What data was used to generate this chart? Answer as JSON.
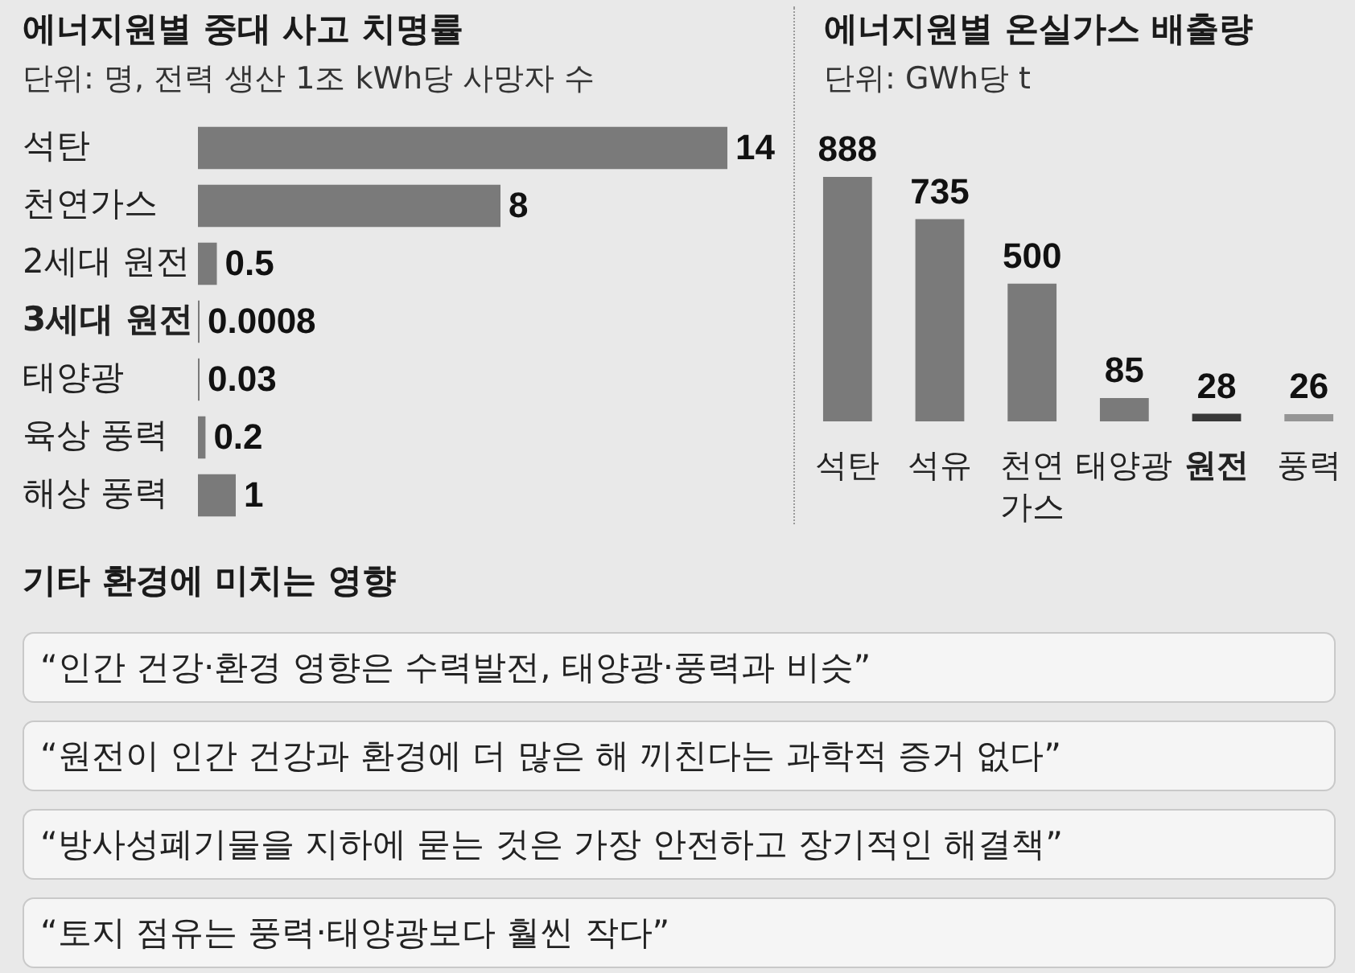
{
  "chart_data": [
    {
      "type": "bar",
      "title": "에너지원별 중대 사고 치명률",
      "subtitle": "단위: 명, 전력 생산 1조 kWh당 사망자 수",
      "orientation": "horizontal",
      "categories": [
        "석탄",
        "천연가스",
        "2세대 원전",
        "3세대 원전",
        "태양광",
        "육상 풍력",
        "해상 풍력"
      ],
      "values": [
        14,
        8,
        0.5,
        0.0008,
        0.03,
        0.2,
        1
      ],
      "color": "#7a7a7a",
      "data_labels": true
    },
    {
      "type": "bar",
      "title": "에너지원별 온실가스 배출량",
      "subtitle": "단위: GWh당 t",
      "categories": [
        "석탄",
        "석유",
        "천연가스",
        "태양광",
        "원전",
        "풍력"
      ],
      "values": [
        888,
        735,
        500,
        85,
        28,
        26
      ],
      "colors": [
        "#7a7a7a",
        "#7a7a7a",
        "#7a7a7a",
        "#7a7a7a",
        "#383838",
        "#959595"
      ],
      "data_labels": true
    },
    {
      "type": "other",
      "title": "기타 환경에 미치는 영향",
      "annotations": [
        "“인간 건강·환경 영향은 수력발전, 태양광·풍력과 비슷”",
        "“원전이 인간 건강과 환경에 더 많은 해 끼친다는 과학적 증거 없다”",
        "“방사성폐기물을 지하에 묻는 것은 가장 안전하고 장기적인 해결책”",
        "“토지 점유는 풍력·태양광보다 훨씬 작다”"
      ]
    }
  ]
}
